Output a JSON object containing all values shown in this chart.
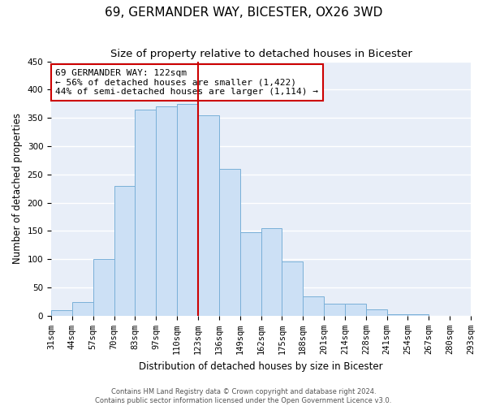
{
  "title": "69, GERMANDER WAY, BICESTER, OX26 3WD",
  "subtitle": "Size of property relative to detached houses in Bicester",
  "xlabel": "Distribution of detached houses by size in Bicester",
  "ylabel": "Number of detached properties",
  "bin_labels": [
    "31sqm",
    "44sqm",
    "57sqm",
    "70sqm",
    "83sqm",
    "97sqm",
    "110sqm",
    "123sqm",
    "136sqm",
    "149sqm",
    "162sqm",
    "175sqm",
    "188sqm",
    "201sqm",
    "214sqm",
    "228sqm",
    "241sqm",
    "254sqm",
    "267sqm",
    "280sqm",
    "293sqm"
  ],
  "bar_heights": [
    10,
    25,
    100,
    230,
    365,
    370,
    375,
    355,
    260,
    148,
    155,
    96,
    35,
    22,
    22,
    11,
    3,
    3,
    0,
    0
  ],
  "bar_color": "#cce0f5",
  "bar_edge_color": "#7ab0d8",
  "vline_position": 7,
  "vline_color": "#cc0000",
  "annotation_text": "69 GERMANDER WAY: 122sqm\n← 56% of detached houses are smaller (1,422)\n44% of semi-detached houses are larger (1,114) →",
  "annotation_box_facecolor": "#ffffff",
  "annotation_box_edgecolor": "#cc0000",
  "ylim": [
    0,
    450
  ],
  "yticks": [
    0,
    50,
    100,
    150,
    200,
    250,
    300,
    350,
    400,
    450
  ],
  "figure_background": "#ffffff",
  "axes_background": "#e8eef8",
  "grid_color": "#ffffff",
  "footer_line1": "Contains HM Land Registry data © Crown copyright and database right 2024.",
  "footer_line2": "Contains public sector information licensed under the Open Government Licence v3.0.",
  "title_fontsize": 11,
  "subtitle_fontsize": 9.5,
  "axis_label_fontsize": 8.5,
  "tick_fontsize": 7.5,
  "annotation_fontsize": 8,
  "footer_fontsize": 6
}
